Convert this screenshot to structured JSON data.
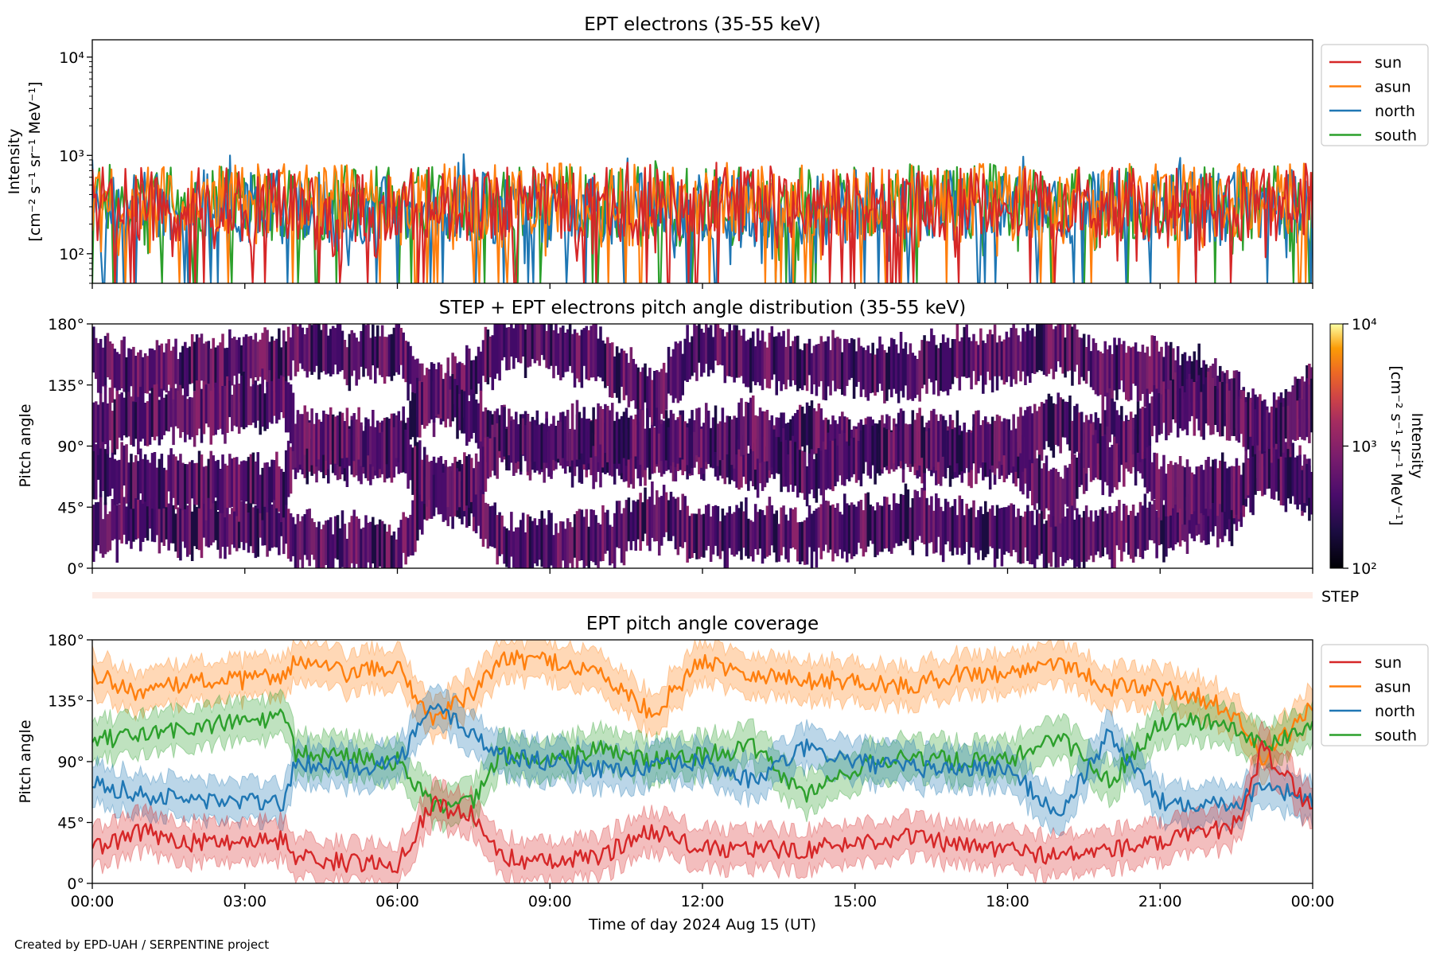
{
  "colors": {
    "sun": "#d62728",
    "asun": "#ff7f0e",
    "north": "#1f77b4",
    "south": "#2ca02c",
    "step_band": "#fdece6"
  },
  "credit": "Created by EPD-UAH / SERPENTINE project",
  "chart_data": [
    {
      "type": "line",
      "title": "EPT electrons (35-55 keV)",
      "ylabel_lines": [
        "Intensity",
        "[cm⁻² s⁻¹ sr⁻¹ MeV⁻¹]"
      ],
      "yscale": "log",
      "ylim": [
        50,
        15000
      ],
      "yticks": [
        {
          "value": 100,
          "label": "10²"
        },
        {
          "value": 1000,
          "label": "10³"
        },
        {
          "value": 10000,
          "label": "10⁴"
        }
      ],
      "x_unit": "hours",
      "xlim": [
        0,
        24
      ],
      "legend_position": "outside-top-right",
      "series": [
        {
          "name": "sun",
          "color": "#d62728",
          "typical": 320,
          "max": 900,
          "min": 50
        },
        {
          "name": "asun",
          "color": "#ff7f0e",
          "typical": 350,
          "max": 900,
          "min": 50
        },
        {
          "name": "north",
          "color": "#1f77b4",
          "typical": 300,
          "max": 1050,
          "min": 50
        },
        {
          "name": "south",
          "color": "#2ca02c",
          "typical": 330,
          "max": 900,
          "min": 50
        }
      ]
    },
    {
      "type": "heatmap",
      "title": "STEP + EPT electrons pitch angle distribution (35-55 keV)",
      "ylabel": "Pitch angle",
      "ylim": [
        0,
        180
      ],
      "yticks": [
        {
          "value": 0,
          "label": "0°"
        },
        {
          "value": 45,
          "label": "45°"
        },
        {
          "value": 90,
          "label": "90°"
        },
        {
          "value": 135,
          "label": "135°"
        },
        {
          "value": 180,
          "label": "180°"
        }
      ],
      "xlim": [
        0,
        24
      ],
      "colorbar": {
        "scale": "log",
        "range": [
          100,
          10000
        ],
        "colormap": "inferno",
        "ticks": [
          {
            "value": 100,
            "label": "10²"
          },
          {
            "value": 1000,
            "label": "10³"
          },
          {
            "value": 10000,
            "label": "10⁴"
          }
        ],
        "label_lines": [
          "Intensity",
          "[cm⁻² s⁻¹ sr⁻¹ MeV⁻¹]"
        ]
      },
      "step_label": "STEP"
    },
    {
      "type": "line",
      "title": "EPT pitch angle coverage",
      "ylabel": "Pitch angle",
      "ylim": [
        0,
        180
      ],
      "yticks": [
        {
          "value": 0,
          "label": "0°"
        },
        {
          "value": 45,
          "label": "45°"
        },
        {
          "value": 90,
          "label": "90°"
        },
        {
          "value": 135,
          "label": "135°"
        },
        {
          "value": 180,
          "label": "180°"
        }
      ],
      "xlabel": "Time of day 2024 Aug 15 (UT)",
      "xlim": [
        0,
        24
      ],
      "xticks": [
        {
          "value": 0,
          "label": "00:00"
        },
        {
          "value": 3,
          "label": "03:00"
        },
        {
          "value": 6,
          "label": "06:00"
        },
        {
          "value": 9,
          "label": "09:00"
        },
        {
          "value": 12,
          "label": "12:00"
        },
        {
          "value": 15,
          "label": "15:00"
        },
        {
          "value": 18,
          "label": "18:00"
        },
        {
          "value": 21,
          "label": "21:00"
        },
        {
          "value": 24,
          "label": "00:00"
        }
      ],
      "legend_position": "outside-top-right",
      "band_halfwidth_deg": 15,
      "series": [
        {
          "name": "sun",
          "color": "#d62728",
          "x": [
            0,
            1,
            2,
            3,
            3.8,
            4,
            5,
            6,
            6.7,
            7,
            7.5,
            8,
            9,
            10,
            11,
            12,
            13,
            14,
            15,
            16,
            17,
            18,
            19,
            20,
            21,
            22,
            22.6,
            23,
            24
          ],
          "y": [
            25,
            38,
            30,
            32,
            32,
            20,
            15,
            15,
            60,
            55,
            50,
            20,
            15,
            20,
            40,
            25,
            25,
            25,
            30,
            35,
            28,
            25,
            20,
            25,
            30,
            38,
            45,
            100,
            55
          ]
        },
        {
          "name": "asun",
          "color": "#ff7f0e",
          "x": [
            0,
            1,
            2,
            3,
            3.8,
            4,
            5,
            6,
            6.7,
            7,
            7.5,
            8,
            9,
            10,
            11,
            12,
            13,
            14,
            15,
            16,
            17,
            18,
            19,
            20,
            21,
            22,
            22.6,
            23,
            24
          ],
          "y": [
            155,
            140,
            150,
            150,
            155,
            165,
            155,
            160,
            120,
            130,
            140,
            165,
            165,
            155,
            125,
            165,
            155,
            150,
            150,
            145,
            155,
            155,
            165,
            145,
            145,
            135,
            120,
            90,
            130
          ]
        },
        {
          "name": "north",
          "color": "#1f77b4",
          "x": [
            0,
            1,
            2,
            3,
            3.8,
            4,
            5,
            6,
            6.7,
            7,
            7.5,
            8,
            9,
            10,
            11,
            12,
            13,
            14,
            15,
            16,
            17,
            18,
            19,
            20,
            21,
            22,
            22.6,
            23,
            24
          ],
          "y": [
            75,
            65,
            62,
            60,
            60,
            90,
            85,
            90,
            130,
            125,
            110,
            95,
            90,
            85,
            85,
            90,
            75,
            100,
            90,
            85,
            85,
            85,
            50,
            110,
            60,
            60,
            60,
            75,
            60
          ]
        },
        {
          "name": "south",
          "color": "#2ca02c",
          "x": [
            0,
            1,
            2,
            3,
            3.8,
            4,
            5,
            6,
            6.7,
            7,
            7.5,
            8,
            9,
            10,
            11,
            12,
            13,
            14,
            15,
            16,
            17,
            18,
            19,
            20,
            21,
            22,
            22.6,
            23,
            24
          ],
          "y": [
            105,
            110,
            115,
            120,
            122,
            95,
            95,
            90,
            60,
            55,
            60,
            95,
            90,
            100,
            90,
            95,
            100,
            65,
            85,
            95,
            90,
            90,
            110,
            75,
            120,
            120,
            115,
            100,
            120
          ]
        }
      ]
    }
  ]
}
